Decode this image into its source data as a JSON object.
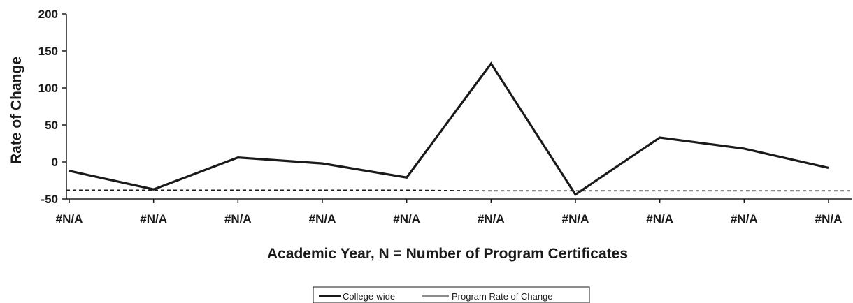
{
  "chart_data": {
    "type": "line",
    "title": "",
    "xlabel": "Academic Year, N = Number of Program Certificates",
    "ylabel": "Rate of Change",
    "categories": [
      "#N/A",
      "#N/A",
      "#N/A",
      "#N/A",
      "#N/A",
      "#N/A",
      "#N/A",
      "#N/A",
      "#N/A",
      "#N/A"
    ],
    "ylim": [
      -50,
      200
    ],
    "yticks": [
      200,
      150,
      100,
      50,
      0,
      -50
    ],
    "grid": false,
    "legend_position": "bottom",
    "series": [
      {
        "name": "College-wide",
        "values": [
          -12,
          -37,
          6,
          -2,
          -21,
          133,
          -44,
          33,
          18,
          -8
        ],
        "color": "#1a1a1a",
        "style": "solid-thick"
      },
      {
        "name": "Program Rate of Change",
        "values": [
          -38,
          -38,
          -38,
          -38,
          -38,
          -39,
          -39,
          -39,
          -39,
          -39
        ],
        "color": "#1a1a1a",
        "style": "dashed"
      }
    ],
    "legend": {
      "college_label": "College-wide",
      "program_label": "Program Rate of Change"
    }
  }
}
